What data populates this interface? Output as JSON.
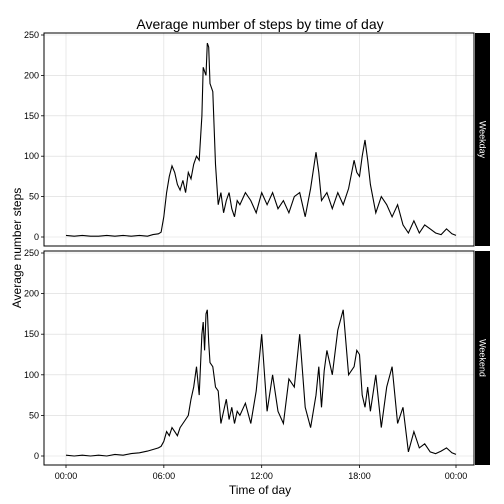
{
  "chart_data": {
    "type": "line",
    "title": "Average number of steps by time of day",
    "xlabel": "Time of day",
    "ylabel": "Average number steps",
    "x_unit": "minutes after midnight",
    "xlim": [
      0,
      1435
    ],
    "ylim": [
      0,
      250
    ],
    "x_ticks": [
      {
        "value": 0,
        "label": "00:00"
      },
      {
        "value": 360,
        "label": "06:00"
      },
      {
        "value": 720,
        "label": "12:00"
      },
      {
        "value": 1080,
        "label": "18:00"
      },
      {
        "value": 1435,
        "label": "00:00"
      }
    ],
    "y_ticks": [
      0,
      50,
      100,
      150,
      200,
      250
    ],
    "grid": true,
    "legend": "none",
    "panels": [
      {
        "strip_label": "Weekday",
        "x": [
          0,
          30,
          60,
          90,
          120,
          150,
          180,
          210,
          240,
          270,
          300,
          320,
          340,
          350,
          360,
          370,
          380,
          390,
          400,
          410,
          420,
          430,
          440,
          450,
          460,
          470,
          480,
          490,
          500,
          505,
          510,
          515,
          520,
          525,
          530,
          540,
          550,
          560,
          570,
          580,
          590,
          600,
          610,
          620,
          630,
          640,
          660,
          680,
          700,
          720,
          740,
          760,
          780,
          800,
          820,
          840,
          860,
          880,
          900,
          920,
          930,
          940,
          950,
          960,
          980,
          1000,
          1020,
          1040,
          1060,
          1070,
          1080,
          1090,
          1100,
          1110,
          1120,
          1140,
          1160,
          1180,
          1200,
          1220,
          1240,
          1260,
          1280,
          1300,
          1320,
          1340,
          1360,
          1380,
          1400,
          1420,
          1435
        ],
        "values": [
          2,
          1,
          2,
          1,
          1,
          2,
          1,
          2,
          1,
          2,
          1,
          3,
          4,
          6,
          25,
          55,
          75,
          88,
          80,
          65,
          58,
          70,
          55,
          80,
          72,
          90,
          100,
          95,
          150,
          210,
          205,
          200,
          240,
          235,
          190,
          180,
          90,
          40,
          55,
          30,
          45,
          55,
          35,
          25,
          45,
          40,
          55,
          45,
          30,
          55,
          40,
          55,
          35,
          45,
          30,
          50,
          55,
          25,
          60,
          105,
          80,
          45,
          50,
          55,
          35,
          55,
          40,
          60,
          95,
          80,
          75,
          100,
          120,
          95,
          65,
          30,
          50,
          40,
          25,
          40,
          15,
          5,
          20,
          5,
          15,
          10,
          5,
          3,
          10,
          4,
          2
        ]
      },
      {
        "strip_label": "Weekend",
        "x": [
          0,
          30,
          60,
          90,
          120,
          150,
          180,
          210,
          240,
          270,
          300,
          320,
          340,
          350,
          360,
          370,
          380,
          390,
          400,
          410,
          420,
          430,
          440,
          450,
          460,
          470,
          480,
          490,
          500,
          505,
          510,
          515,
          520,
          525,
          530,
          540,
          550,
          560,
          570,
          580,
          590,
          600,
          610,
          620,
          630,
          640,
          660,
          680,
          700,
          720,
          740,
          760,
          780,
          800,
          820,
          840,
          860,
          880,
          900,
          920,
          930,
          940,
          950,
          960,
          980,
          1000,
          1020,
          1040,
          1060,
          1070,
          1080,
          1090,
          1100,
          1110,
          1120,
          1140,
          1160,
          1180,
          1200,
          1220,
          1240,
          1260,
          1280,
          1300,
          1320,
          1340,
          1360,
          1380,
          1400,
          1420,
          1435
        ],
        "values": [
          1,
          0,
          1,
          0,
          1,
          0,
          2,
          1,
          3,
          4,
          6,
          8,
          10,
          12,
          18,
          30,
          25,
          35,
          30,
          25,
          35,
          40,
          45,
          50,
          70,
          85,
          110,
          75,
          150,
          165,
          130,
          175,
          180,
          140,
          115,
          110,
          85,
          80,
          40,
          55,
          70,
          45,
          60,
          40,
          55,
          50,
          65,
          40,
          80,
          150,
          55,
          100,
          55,
          40,
          95,
          85,
          150,
          60,
          35,
          75,
          110,
          60,
          105,
          130,
          100,
          155,
          180,
          100,
          110,
          130,
          125,
          75,
          60,
          85,
          55,
          100,
          35,
          85,
          110,
          40,
          60,
          5,
          30,
          10,
          15,
          5,
          3,
          6,
          10,
          4,
          2
        ]
      }
    ]
  }
}
